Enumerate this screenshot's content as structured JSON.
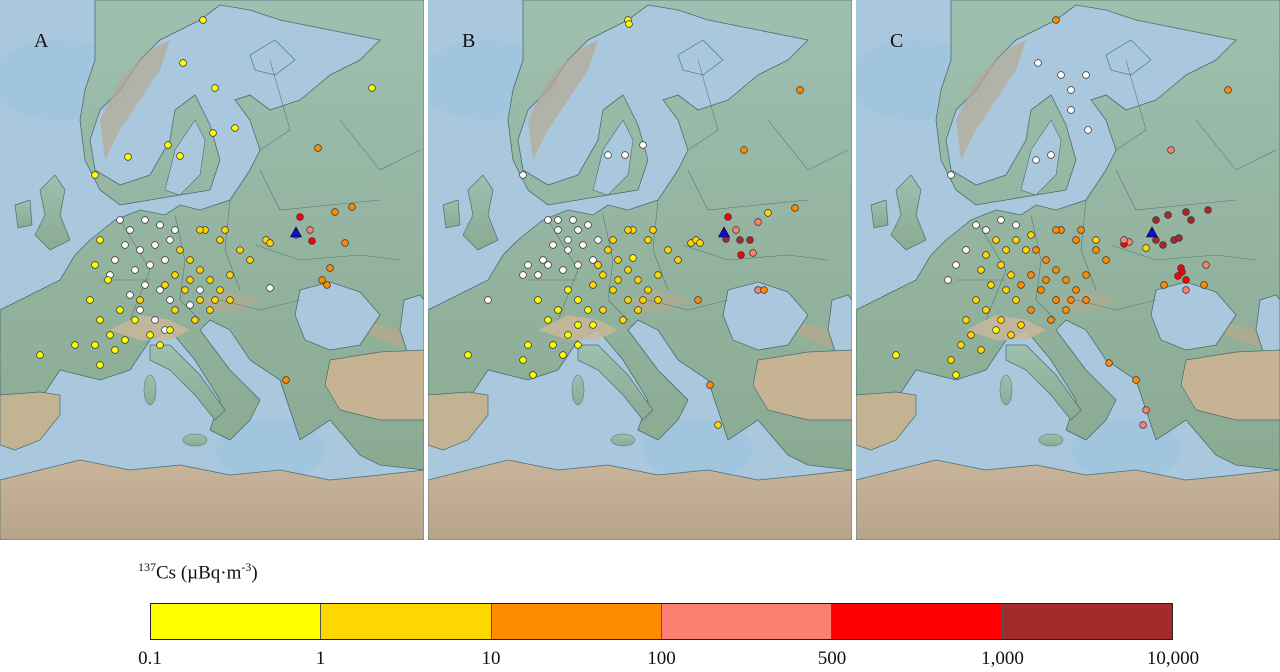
{
  "legend": {
    "nuclide_mass": "137",
    "nuclide_symbol": "Cs",
    "unit_open": " (µBq·m",
    "unit_exp": "-3",
    "unit_close": ")",
    "ticks": [
      "0.1",
      "1",
      "10",
      "100",
      "500",
      "1,000",
      "10,000"
    ],
    "classes": [
      {
        "range": "0.1–1",
        "color": "#ffff00"
      },
      {
        "range": "1–10",
        "color": "#ffd700"
      },
      {
        "range": "10–100",
        "color": "#ff8c00"
      },
      {
        "range": "100–500",
        "color": "#fa8072"
      },
      {
        "range": "500–1,000",
        "color": "#ff0000"
      },
      {
        "range": "1,000–10,000",
        "color": "#a52a2a"
      }
    ],
    "no_detect_color": "#ffffff"
  },
  "source_marker": {
    "symbol": "blue-triangle",
    "color": "#1010c8"
  },
  "map_colors": {
    "sea": "#a9c8de",
    "land": "#8fb09a",
    "mountain": "#b8a98a",
    "desert": "#cdb79e"
  },
  "panels": [
    {
      "label": "A",
      "stations": [
        [
          203,
          20,
          0
        ],
        [
          183,
          63,
          0
        ],
        [
          215,
          88,
          0
        ],
        [
          372,
          88,
          0
        ],
        [
          235,
          128,
          0
        ],
        [
          213,
          133,
          0
        ],
        [
          168,
          145,
          0
        ],
        [
          180,
          156,
          0
        ],
        [
          128,
          157,
          0
        ],
        [
          95,
          175,
          0
        ],
        [
          318,
          148,
          2
        ],
        [
          300,
          217,
          4
        ],
        [
          310,
          230,
          3
        ],
        [
          312,
          241,
          4
        ],
        [
          296,
          235,
          3
        ],
        [
          266,
          240,
          1
        ],
        [
          270,
          243,
          1
        ],
        [
          335,
          212,
          2
        ],
        [
          352,
          207,
          2
        ],
        [
          345,
          243,
          2
        ],
        [
          330,
          268,
          2
        ],
        [
          322,
          280,
          2
        ],
        [
          327,
          285,
          2
        ],
        [
          286,
          380,
          2
        ],
        [
          120,
          220,
          -1
        ],
        [
          130,
          230,
          -1
        ],
        [
          145,
          220,
          -1
        ],
        [
          160,
          225,
          -1
        ],
        [
          125,
          245,
          -1
        ],
        [
          140,
          250,
          -1
        ],
        [
          155,
          245,
          -1
        ],
        [
          170,
          240,
          -1
        ],
        [
          115,
          260,
          -1
        ],
        [
          135,
          270,
          -1
        ],
        [
          150,
          265,
          -1
        ],
        [
          165,
          260,
          -1
        ],
        [
          145,
          285,
          -1
        ],
        [
          130,
          295,
          -1
        ],
        [
          160,
          225,
          -1
        ],
        [
          175,
          230,
          -1
        ],
        [
          160,
          290,
          -1
        ],
        [
          170,
          300,
          -1
        ],
        [
          140,
          310,
          -1
        ],
        [
          155,
          320,
          -1
        ],
        [
          165,
          330,
          -1
        ],
        [
          110,
          275,
          -1
        ],
        [
          270,
          288,
          -1
        ],
        [
          200,
          290,
          -1
        ],
        [
          190,
          305,
          -1
        ],
        [
          100,
          240,
          0
        ],
        [
          95,
          265,
          0
        ],
        [
          108,
          280,
          0
        ],
        [
          90,
          300,
          0
        ],
        [
          100,
          320,
          0
        ],
        [
          110,
          335,
          0
        ],
        [
          120,
          310,
          0
        ],
        [
          135,
          320,
          0
        ],
        [
          150,
          335,
          0
        ],
        [
          160,
          345,
          0
        ],
        [
          170,
          330,
          0
        ],
        [
          40,
          355,
          0
        ],
        [
          75,
          345,
          0
        ],
        [
          95,
          345,
          0
        ],
        [
          100,
          365,
          0
        ],
        [
          115,
          350,
          0
        ],
        [
          125,
          340,
          0
        ],
        [
          140,
          300,
          1
        ],
        [
          180,
          250,
          1
        ],
        [
          190,
          260,
          1
        ],
        [
          200,
          270,
          1
        ],
        [
          210,
          280,
          1
        ],
        [
          220,
          290,
          1
        ],
        [
          230,
          275,
          1
        ],
        [
          190,
          280,
          1
        ],
        [
          200,
          300,
          1
        ],
        [
          215,
          300,
          1
        ],
        [
          230,
          300,
          1
        ],
        [
          240,
          250,
          1
        ],
        [
          250,
          260,
          1
        ],
        [
          220,
          240,
          1
        ],
        [
          205,
          230,
          1
        ],
        [
          225,
          230,
          1
        ],
        [
          185,
          290,
          1
        ],
        [
          175,
          275,
          1
        ],
        [
          195,
          320,
          1
        ],
        [
          210,
          310,
          1
        ],
        [
          165,
          285,
          1
        ],
        [
          175,
          310,
          1
        ],
        [
          200,
          230,
          1
        ]
      ]
    },
    {
      "label": "B",
      "stations": [
        [
          200,
          20,
          0
        ],
        [
          201,
          24,
          0
        ],
        [
          372,
          90,
          2
        ],
        [
          316,
          150,
          2
        ],
        [
          197,
          155,
          -1
        ],
        [
          215,
          145,
          -1
        ],
        [
          180,
          155,
          -1
        ],
        [
          95,
          175,
          -1
        ],
        [
          300,
          217,
          4
        ],
        [
          312,
          240,
          5
        ],
        [
          322,
          240,
          5
        ],
        [
          308,
          230,
          3
        ],
        [
          330,
          222,
          3
        ],
        [
          340,
          213,
          1
        ],
        [
          367,
          208,
          2
        ],
        [
          298,
          239,
          5
        ],
        [
          313,
          255,
          4
        ],
        [
          263,
          243,
          1
        ],
        [
          268,
          240,
          1
        ],
        [
          272,
          243,
          1
        ],
        [
          325,
          253,
          3
        ],
        [
          330,
          290,
          3
        ],
        [
          336,
          290,
          2
        ],
        [
          270,
          300,
          2
        ],
        [
          282,
          385,
          2
        ],
        [
          290,
          425,
          1
        ],
        [
          120,
          220,
          -1
        ],
        [
          130,
          230,
          -1
        ],
        [
          145,
          220,
          -1
        ],
        [
          160,
          225,
          -1
        ],
        [
          125,
          245,
          -1
        ],
        [
          140,
          250,
          -1
        ],
        [
          155,
          245,
          -1
        ],
        [
          170,
          240,
          -1
        ],
        [
          115,
          260,
          -1
        ],
        [
          135,
          270,
          -1
        ],
        [
          150,
          265,
          -1
        ],
        [
          165,
          260,
          -1
        ],
        [
          110,
          275,
          -1
        ],
        [
          100,
          265,
          -1
        ],
        [
          95,
          275,
          -1
        ],
        [
          120,
          265,
          -1
        ],
        [
          140,
          240,
          -1
        ],
        [
          130,
          220,
          -1
        ],
        [
          60,
          300,
          -1
        ],
        [
          150,
          230,
          -1
        ],
        [
          180,
          250,
          1
        ],
        [
          190,
          260,
          1
        ],
        [
          200,
          270,
          1
        ],
        [
          210,
          280,
          1
        ],
        [
          220,
          290,
          1
        ],
        [
          230,
          275,
          1
        ],
        [
          190,
          280,
          1
        ],
        [
          200,
          300,
          1
        ],
        [
          215,
          300,
          1
        ],
        [
          230,
          300,
          1
        ],
        [
          240,
          250,
          1
        ],
        [
          250,
          260,
          1
        ],
        [
          220,
          240,
          1
        ],
        [
          205,
          230,
          1
        ],
        [
          225,
          230,
          1
        ],
        [
          185,
          290,
          1
        ],
        [
          175,
          275,
          1
        ],
        [
          195,
          320,
          1
        ],
        [
          210,
          310,
          1
        ],
        [
          165,
          285,
          1
        ],
        [
          175,
          310,
          1
        ],
        [
          200,
          230,
          1
        ],
        [
          185,
          240,
          1
        ],
        [
          170,
          265,
          1
        ],
        [
          140,
          290,
          0
        ],
        [
          150,
          300,
          0
        ],
        [
          160,
          310,
          0
        ],
        [
          120,
          320,
          0
        ],
        [
          110,
          300,
          0
        ],
        [
          130,
          310,
          0
        ],
        [
          150,
          325,
          0
        ],
        [
          140,
          335,
          0
        ],
        [
          100,
          345,
          0
        ],
        [
          95,
          360,
          0
        ],
        [
          105,
          375,
          0
        ],
        [
          40,
          355,
          0
        ],
        [
          125,
          345,
          0
        ],
        [
          135,
          355,
          0
        ],
        [
          150,
          345,
          0
        ],
        [
          165,
          325,
          0
        ],
        [
          205,
          258,
          0
        ]
      ]
    },
    {
      "label": "C",
      "stations": [
        [
          200,
          20,
          2
        ],
        [
          182,
          63,
          -1
        ],
        [
          215,
          90,
          -1
        ],
        [
          205,
          75,
          -1
        ],
        [
          230,
          75,
          -1
        ],
        [
          215,
          110,
          -1
        ],
        [
          232,
          130,
          -1
        ],
        [
          372,
          90,
          2
        ],
        [
          315,
          150,
          3
        ],
        [
          95,
          175,
          -1
        ],
        [
          195,
          155,
          -1
        ],
        [
          180,
          160,
          -1
        ],
        [
          312,
          215,
          5
        ],
        [
          330,
          212,
          5
        ],
        [
          352,
          210,
          5
        ],
        [
          300,
          220,
          5
        ],
        [
          335,
          220,
          5
        ],
        [
          300,
          240,
          5
        ],
        [
          307,
          245,
          5
        ],
        [
          318,
          240,
          5
        ],
        [
          323,
          238,
          5
        ],
        [
          273,
          242,
          3
        ],
        [
          268,
          244,
          4
        ],
        [
          268,
          240,
          3
        ],
        [
          325,
          268,
          4
        ],
        [
          326,
          272,
          4
        ],
        [
          322,
          276,
          4
        ],
        [
          330,
          280,
          4
        ],
        [
          330,
          290,
          3
        ],
        [
          350,
          265,
          3
        ],
        [
          348,
          285,
          2
        ],
        [
          308,
          285,
          2
        ],
        [
          280,
          380,
          2
        ],
        [
          290,
          410,
          3
        ],
        [
          287,
          425,
          3
        ],
        [
          253,
          363,
          2
        ],
        [
          290,
          248,
          1
        ],
        [
          240,
          240,
          1
        ],
        [
          120,
          225,
          -1
        ],
        [
          130,
          230,
          -1
        ],
        [
          145,
          220,
          -1
        ],
        [
          160,
          225,
          -1
        ],
        [
          110,
          250,
          -1
        ],
        [
          100,
          265,
          -1
        ],
        [
          92,
          280,
          -1
        ],
        [
          180,
          250,
          2
        ],
        [
          190,
          260,
          2
        ],
        [
          200,
          270,
          2
        ],
        [
          210,
          280,
          2
        ],
        [
          220,
          290,
          2
        ],
        [
          230,
          275,
          2
        ],
        [
          190,
          280,
          2
        ],
        [
          200,
          300,
          2
        ],
        [
          215,
          300,
          2
        ],
        [
          230,
          300,
          2
        ],
        [
          240,
          250,
          2
        ],
        [
          250,
          260,
          2
        ],
        [
          220,
          240,
          2
        ],
        [
          205,
          230,
          2
        ],
        [
          225,
          230,
          2
        ],
        [
          185,
          290,
          2
        ],
        [
          175,
          275,
          2
        ],
        [
          195,
          320,
          2
        ],
        [
          210,
          310,
          2
        ],
        [
          165,
          285,
          2
        ],
        [
          175,
          310,
          2
        ],
        [
          200,
          230,
          2
        ],
        [
          140,
          240,
          1
        ],
        [
          150,
          250,
          1
        ],
        [
          160,
          240,
          1
        ],
        [
          170,
          250,
          1
        ],
        [
          130,
          255,
          1
        ],
        [
          145,
          265,
          1
        ],
        [
          155,
          275,
          1
        ],
        [
          125,
          270,
          1
        ],
        [
          135,
          285,
          1
        ],
        [
          150,
          290,
          1
        ],
        [
          160,
          300,
          1
        ],
        [
          120,
          300,
          1
        ],
        [
          130,
          310,
          1
        ],
        [
          145,
          320,
          1
        ],
        [
          110,
          320,
          1
        ],
        [
          115,
          335,
          1
        ],
        [
          125,
          350,
          1
        ],
        [
          105,
          345,
          1
        ],
        [
          95,
          360,
          1
        ],
        [
          40,
          355,
          0
        ],
        [
          155,
          335,
          1
        ],
        [
          165,
          325,
          1
        ],
        [
          140,
          330,
          0
        ],
        [
          100,
          375,
          0
        ],
        [
          175,
          235,
          1
        ]
      ]
    }
  ],
  "source_location": [
    296,
    233
  ]
}
